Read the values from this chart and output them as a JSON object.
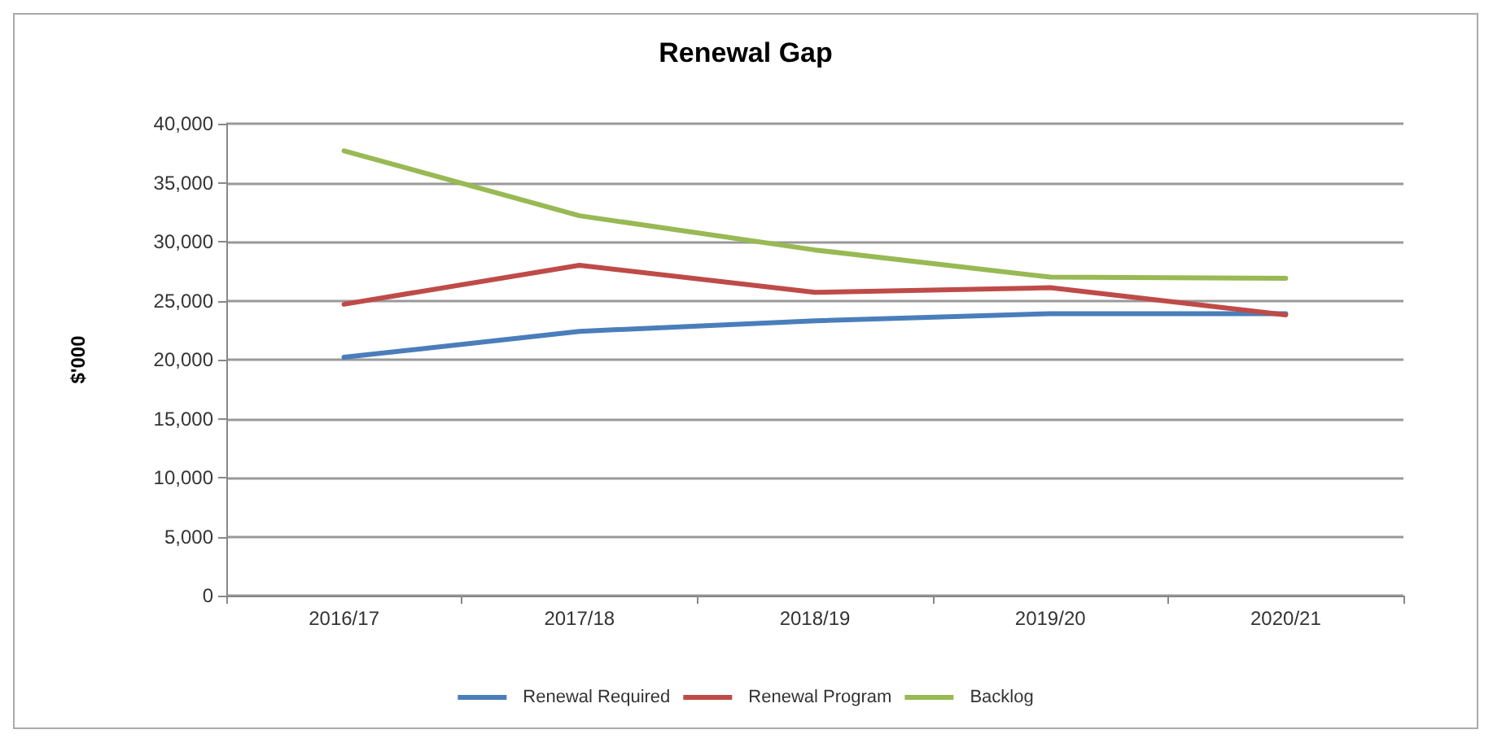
{
  "chart_data": {
    "type": "line",
    "title": "Renewal Gap",
    "ylabel": "$'000",
    "categories": [
      "2016/17",
      "2017/18",
      "2018/19",
      "2019/20",
      "2020/21"
    ],
    "series": [
      {
        "name": "Renewal Required",
        "color": "#4a7ebb",
        "values": [
          20200,
          22400,
          23300,
          23900,
          23900
        ]
      },
      {
        "name": "Renewal Program",
        "color": "#be4b48",
        "values": [
          24700,
          28000,
          25700,
          26100,
          23800
        ]
      },
      {
        "name": "Backlog",
        "color": "#98b954",
        "values": [
          37700,
          32200,
          29300,
          27000,
          26900
        ]
      }
    ],
    "ylim": [
      0,
      40000
    ],
    "yticks": [
      0,
      {
        "value": 5000,
        "label": "5,000"
      },
      {
        "value": 10000,
        "label": "10,000"
      },
      {
        "value": 15000,
        "label": "15,000"
      },
      {
        "value": 20000,
        "label": "20,000"
      },
      {
        "value": 25000,
        "label": "25,000"
      },
      {
        "value": 30000,
        "label": "30,000"
      },
      {
        "value": 35000,
        "label": "35,000"
      },
      {
        "value": 40000,
        "label": "40,000"
      }
    ],
    "grid": "y",
    "legend": "bottom",
    "marker": "none",
    "line_style": "solid"
  }
}
